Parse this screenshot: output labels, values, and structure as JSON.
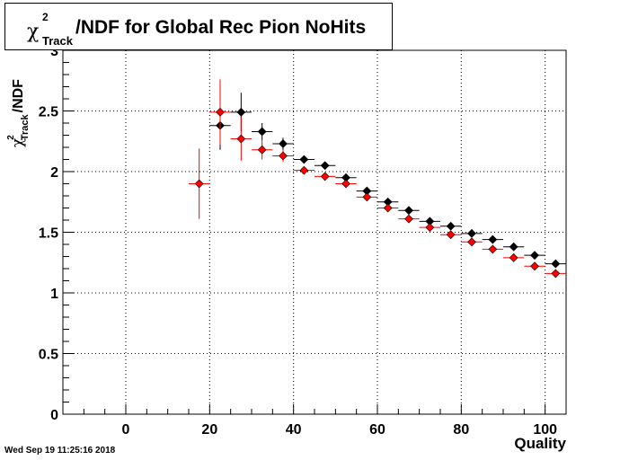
{
  "title": {
    "symbol": "χ",
    "superscript": "2",
    "subscript": "Track",
    "text": "/NDF for Global Rec Pion NoHits"
  },
  "axes": {
    "xlabel": "Quality",
    "ylabel_symbol": "χ",
    "ylabel_superscript": "2",
    "ylabel_subscript": "Track",
    "ylabel_text": "/NDF"
  },
  "datestamp": "Wed Sep 19 11:25:16 2018",
  "chart_data": {
    "type": "scatter",
    "xlim": [
      -15,
      105
    ],
    "ylim": [
      0,
      3
    ],
    "x_ticks": [
      0,
      20,
      40,
      60,
      80,
      100
    ],
    "x_tick_labels": [
      "0",
      "20",
      "40",
      "60",
      "80",
      "100"
    ],
    "y_ticks": [
      0,
      0.5,
      1,
      1.5,
      2,
      2.5,
      3
    ],
    "y_tick_labels": [
      "0",
      "0.5",
      "1",
      "1.5",
      "2",
      "2.5",
      "3"
    ],
    "grid": true,
    "series": [
      {
        "color": "#000000",
        "points": [
          {
            "x": 22.5,
            "y": 2.38,
            "xerr": 2.5,
            "yerr": 0.2
          },
          {
            "x": 27.5,
            "y": 2.49,
            "xerr": 2.5,
            "yerr": 0.16
          },
          {
            "x": 32.5,
            "y": 2.33,
            "xerr": 2.5,
            "yerr": 0.07
          },
          {
            "x": 37.5,
            "y": 2.23,
            "xerr": 2.5,
            "yerr": 0.05
          },
          {
            "x": 42.5,
            "y": 2.1,
            "xerr": 2.5,
            "yerr": 0.02
          },
          {
            "x": 47.5,
            "y": 2.05,
            "xerr": 2.5,
            "yerr": 0.02
          },
          {
            "x": 52.5,
            "y": 1.95,
            "xerr": 2.5,
            "yerr": 0.02
          },
          {
            "x": 57.5,
            "y": 1.84,
            "xerr": 2.5,
            "yerr": 0.02
          },
          {
            "x": 62.5,
            "y": 1.75,
            "xerr": 2.5,
            "yerr": 0.02
          },
          {
            "x": 67.5,
            "y": 1.68,
            "xerr": 2.5,
            "yerr": 0.01
          },
          {
            "x": 72.5,
            "y": 1.59,
            "xerr": 2.5,
            "yerr": 0.01
          },
          {
            "x": 77.5,
            "y": 1.55,
            "xerr": 2.5,
            "yerr": 0.01
          },
          {
            "x": 82.5,
            "y": 1.49,
            "xerr": 2.5,
            "yerr": 0.01
          },
          {
            "x": 87.5,
            "y": 1.44,
            "xerr": 2.5,
            "yerr": 0.01
          },
          {
            "x": 92.5,
            "y": 1.38,
            "xerr": 2.5,
            "yerr": 0.01
          },
          {
            "x": 97.5,
            "y": 1.31,
            "xerr": 2.5,
            "yerr": 0.01
          },
          {
            "x": 102.5,
            "y": 1.24,
            "xerr": 2.5,
            "yerr": 0.01
          }
        ]
      },
      {
        "color": "#ff0000",
        "points": [
          {
            "x": 17.5,
            "y": 1.9,
            "xerr": 2.5,
            "yerr": 0.29
          },
          {
            "x": 22.5,
            "y": 2.49,
            "xerr": 2.5,
            "yerr": 0.27
          },
          {
            "x": 27.5,
            "y": 2.27,
            "xerr": 2.5,
            "yerr": 0.18
          },
          {
            "x": 32.5,
            "y": 2.18,
            "xerr": 2.5,
            "yerr": 0.08
          },
          {
            "x": 37.5,
            "y": 2.13,
            "xerr": 2.5,
            "yerr": 0.05
          },
          {
            "x": 42.5,
            "y": 2.01,
            "xerr": 2.5,
            "yerr": 0.02
          },
          {
            "x": 47.5,
            "y": 1.96,
            "xerr": 2.5,
            "yerr": 0.02
          },
          {
            "x": 52.5,
            "y": 1.9,
            "xerr": 2.5,
            "yerr": 0.02
          },
          {
            "x": 57.5,
            "y": 1.79,
            "xerr": 2.5,
            "yerr": 0.02
          },
          {
            "x": 62.5,
            "y": 1.7,
            "xerr": 2.5,
            "yerr": 0.02
          },
          {
            "x": 67.5,
            "y": 1.61,
            "xerr": 2.5,
            "yerr": 0.01
          },
          {
            "x": 72.5,
            "y": 1.54,
            "xerr": 2.5,
            "yerr": 0.01
          },
          {
            "x": 77.5,
            "y": 1.48,
            "xerr": 2.5,
            "yerr": 0.01
          },
          {
            "x": 82.5,
            "y": 1.42,
            "xerr": 2.5,
            "yerr": 0.01
          },
          {
            "x": 87.5,
            "y": 1.36,
            "xerr": 2.5,
            "yerr": 0.01
          },
          {
            "x": 92.5,
            "y": 1.29,
            "xerr": 2.5,
            "yerr": 0.01
          },
          {
            "x": 97.5,
            "y": 1.22,
            "xerr": 2.5,
            "yerr": 0.01
          },
          {
            "x": 102.5,
            "y": 1.16,
            "xerr": 2.5,
            "yerr": 0.01
          }
        ]
      }
    ]
  }
}
